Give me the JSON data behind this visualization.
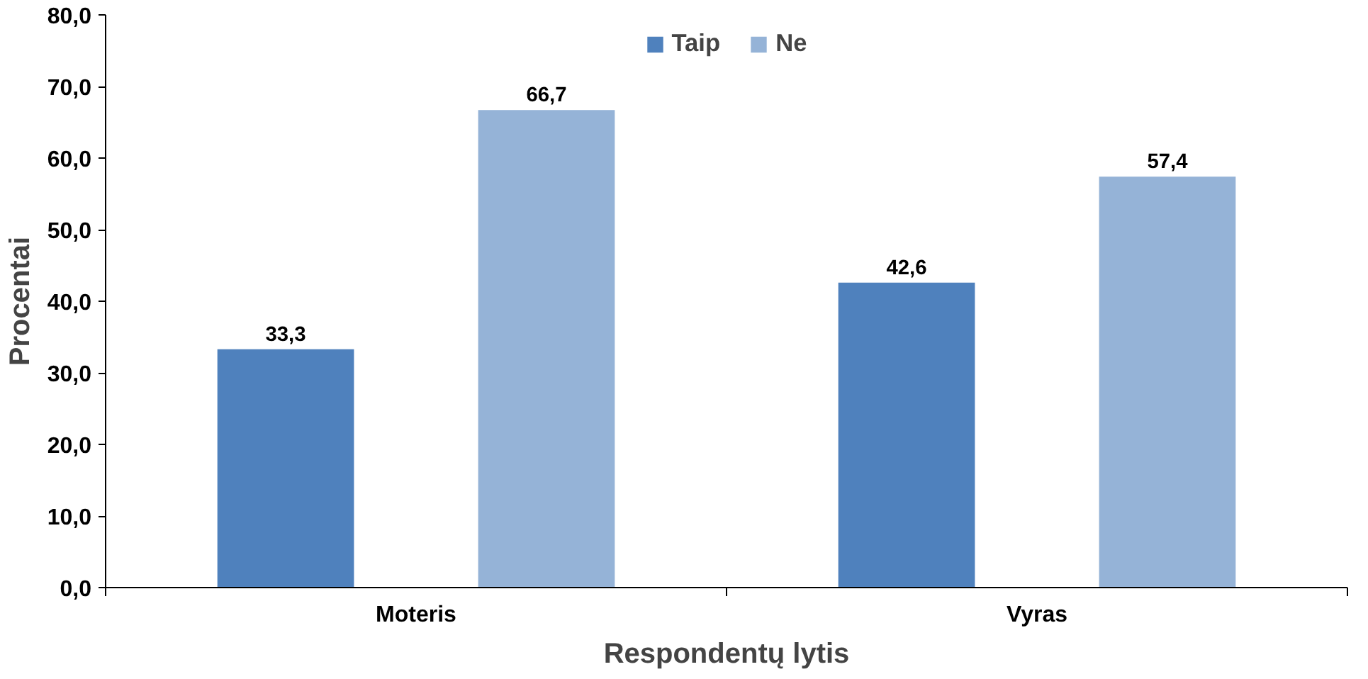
{
  "chart_data": {
    "type": "bar",
    "xlabel": "Respondentų lytis",
    "ylabel": "Procentai",
    "categories": [
      "Moteris",
      "Vyras"
    ],
    "series": [
      {
        "name": "Taip",
        "color": "#4f81bd",
        "values": [
          33.3,
          42.6
        ],
        "value_labels": [
          "33,3",
          "42,6"
        ]
      },
      {
        "name": "Ne",
        "color": "#95b3d7",
        "values": [
          66.7,
          57.4
        ],
        "value_labels": [
          "66,7",
          "57,4"
        ]
      }
    ],
    "ylim": [
      0,
      80
    ],
    "yticks": [
      {
        "value": 0,
        "label": "0,0"
      },
      {
        "value": 10,
        "label": "10,0"
      },
      {
        "value": 20,
        "label": "20,0"
      },
      {
        "value": 30,
        "label": "30,0"
      },
      {
        "value": 40,
        "label": "40,0"
      },
      {
        "value": 50,
        "label": "50,0"
      },
      {
        "value": 60,
        "label": "60,0"
      },
      {
        "value": 70,
        "label": "70,0"
      },
      {
        "value": 80,
        "label": "80,0"
      }
    ],
    "grid": false,
    "legend": "top"
  }
}
